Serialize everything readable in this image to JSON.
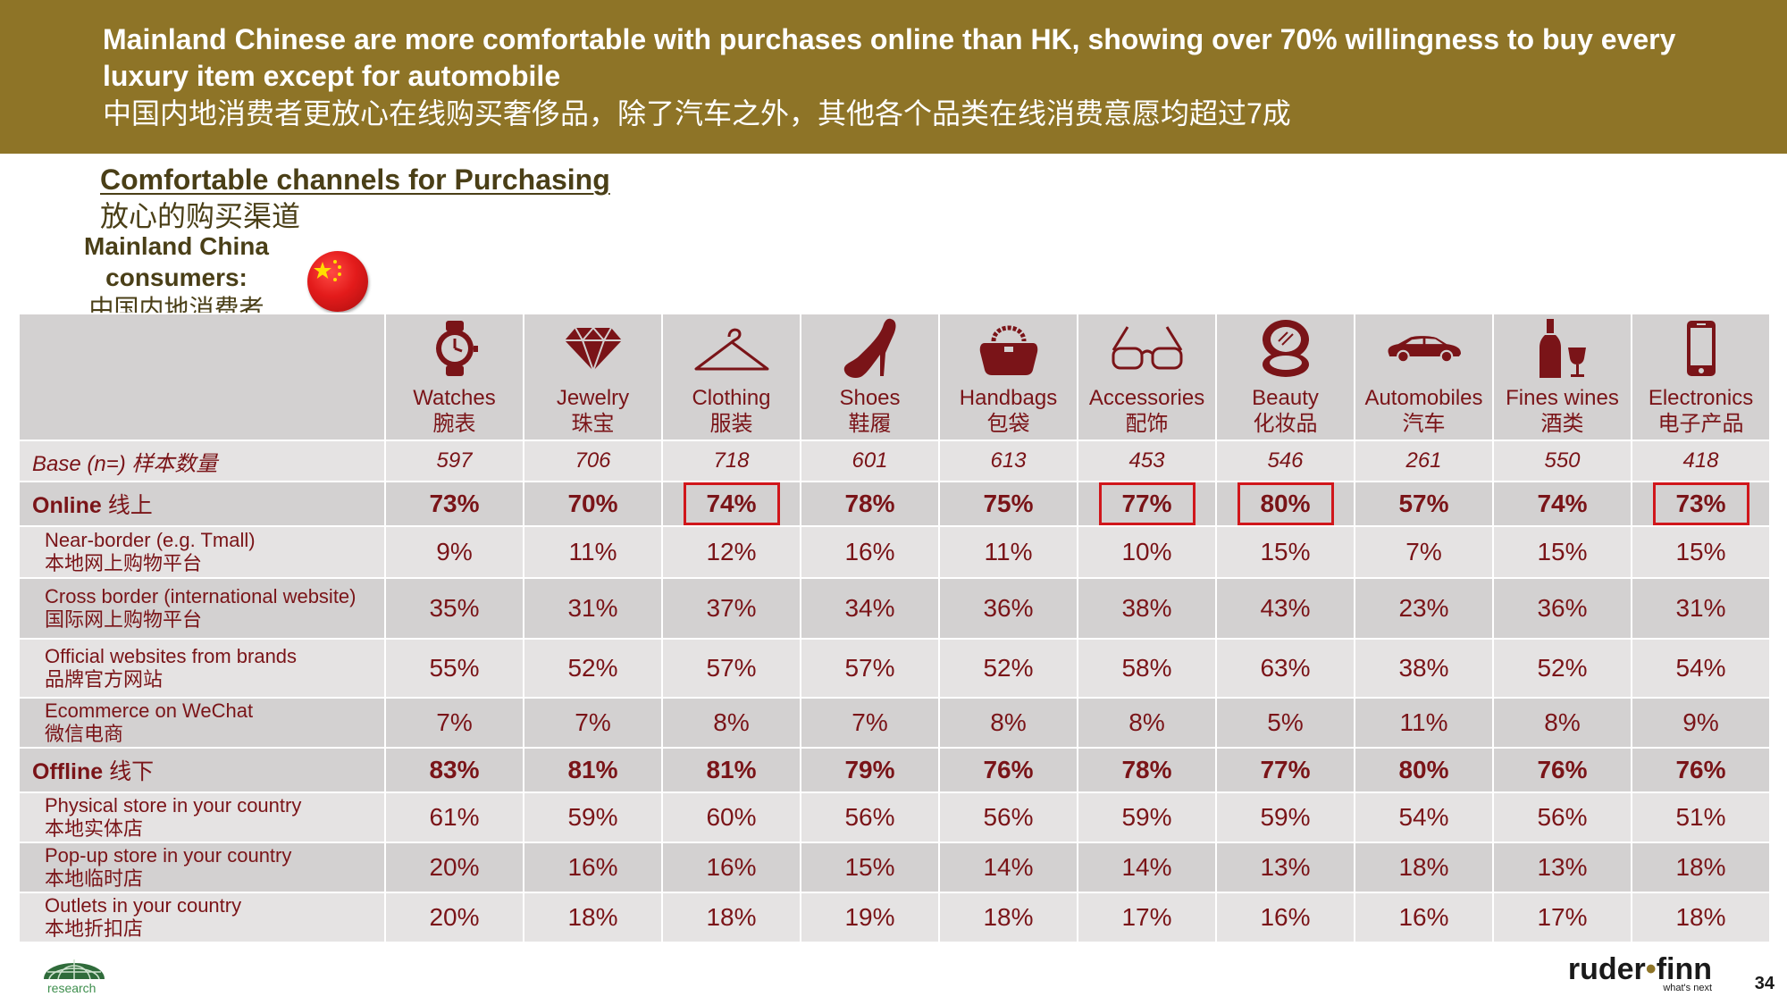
{
  "header": {
    "title_en": "Mainland Chinese are more comfortable with purchases online than HK, showing over 70% willingness to buy every luxury item except for automobile",
    "title_zh": "中国内地消费者更放心在线购买奢侈品，除了汽车之外，其他各个品类在线消费意愿均超过7成"
  },
  "subtitle": {
    "en": "Comfortable channels for Purchasing",
    "zh": "放心的购买渠道"
  },
  "segment": {
    "line1": "Mainland China",
    "line2": "consumers:",
    "line3": "中国内地消费者",
    "flag_icon": "china-flag-icon"
  },
  "categories": [
    {
      "en": "Watches",
      "zh": "腕表",
      "icon": "watch-icon"
    },
    {
      "en": "Jewelry",
      "zh": "珠宝",
      "icon": "diamond-icon"
    },
    {
      "en": "Clothing",
      "zh": "服装",
      "icon": "hanger-icon"
    },
    {
      "en": "Shoes",
      "zh": "鞋履",
      "icon": "high-heel-icon"
    },
    {
      "en": "Handbags",
      "zh": "包袋",
      "icon": "handbag-icon"
    },
    {
      "en": "Accessories",
      "zh": "配饰",
      "icon": "glasses-icon"
    },
    {
      "en": "Beauty",
      "zh": "化妆品",
      "icon": "compact-mirror-icon"
    },
    {
      "en": "Automobiles",
      "zh": "汽车",
      "icon": "car-icon"
    },
    {
      "en": "Fines wines",
      "zh": "酒类",
      "icon": "wine-icon"
    },
    {
      "en": "Electronics",
      "zh": "电子产品",
      "icon": "smartphone-icon"
    }
  ],
  "base": {
    "label_en": "Base (n=)",
    "label_zh": "样本数量",
    "values": [
      "597",
      "706",
      "718",
      "601",
      "613",
      "453",
      "546",
      "261",
      "550",
      "418"
    ]
  },
  "online": {
    "label_en": "Online",
    "label_zh": "线上",
    "values": [
      "73%",
      "70%",
      "74%",
      "78%",
      "75%",
      "77%",
      "80%",
      "57%",
      "74%",
      "73%"
    ],
    "highlighted": [
      false,
      false,
      true,
      false,
      false,
      true,
      true,
      false,
      false,
      true
    ]
  },
  "online_rows": [
    {
      "label_en": "Near-border (e.g. Tmall)",
      "label_zh": "本地网上购物平台",
      "values": [
        "9%",
        "11%",
        "12%",
        "16%",
        "11%",
        "10%",
        "15%",
        "7%",
        "15%",
        "15%"
      ]
    },
    {
      "label_en": "Cross border (international website)",
      "label_zh": "国际网上购物平台",
      "values": [
        "35%",
        "31%",
        "37%",
        "34%",
        "36%",
        "38%",
        "43%",
        "23%",
        "36%",
        "31%"
      ]
    },
    {
      "label_en": "Official websites from brands",
      "label_zh": "品牌官方网站",
      "values": [
        "55%",
        "52%",
        "57%",
        "57%",
        "52%",
        "58%",
        "63%",
        "38%",
        "52%",
        "54%"
      ]
    },
    {
      "label_en": "Ecommerce on WeChat",
      "label_zh": "微信电商",
      "values": [
        "7%",
        "7%",
        "8%",
        "7%",
        "8%",
        "8%",
        "5%",
        "11%",
        "8%",
        "9%"
      ]
    }
  ],
  "offline": {
    "label_en": "Offline",
    "label_zh": "线下",
    "values": [
      "83%",
      "81%",
      "81%",
      "79%",
      "76%",
      "78%",
      "77%",
      "80%",
      "76%",
      "76%"
    ]
  },
  "offline_rows": [
    {
      "label_en": "Physical store in your country",
      "label_zh": "本地实体店",
      "values": [
        "61%",
        "59%",
        "60%",
        "56%",
        "56%",
        "59%",
        "59%",
        "54%",
        "56%",
        "51%"
      ]
    },
    {
      "label_en": "Pop-up store in your country",
      "label_zh": "本地临时店",
      "values": [
        "20%",
        "16%",
        "16%",
        "15%",
        "14%",
        "14%",
        "13%",
        "18%",
        "13%",
        "18%"
      ]
    },
    {
      "label_en": "Outlets in your country",
      "label_zh": "本地折扣店",
      "values": [
        "20%",
        "18%",
        "18%",
        "19%",
        "18%",
        "17%",
        "16%",
        "16%",
        "17%",
        "18%"
      ]
    }
  ],
  "footer": {
    "research_label": "research",
    "brand_left": "ruder",
    "brand_dot": "•",
    "brand_right": "finn",
    "tagline": "what's next",
    "page_number": "34"
  },
  "colors": {
    "banner": "#8e7427",
    "data_text": "#7a1418",
    "highlight_box": "#d0161b",
    "dark_row": "#d3d1d1",
    "light_row": "#e5e3e3"
  }
}
